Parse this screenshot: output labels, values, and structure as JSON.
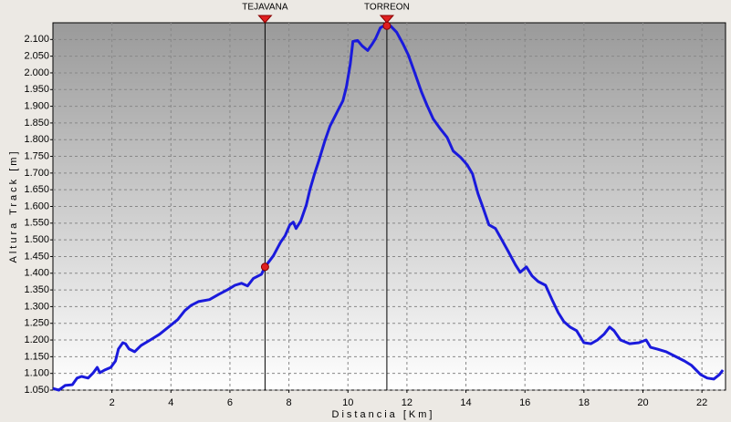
{
  "chart_data": {
    "type": "line",
    "x_label": "Distancia [Km]",
    "y_label": "Altura Track [m]",
    "color": "#1a1adc",
    "grid": true,
    "xlim": [
      0,
      22.8
    ],
    "ylim": [
      1050,
      2150
    ],
    "xticks": [
      2,
      4,
      6,
      8,
      10,
      12,
      14,
      16,
      18,
      20,
      22
    ],
    "yticks": [
      {
        "value": 1050,
        "label": "1.050"
      },
      {
        "value": 1100,
        "label": "1.100"
      },
      {
        "value": 1150,
        "label": "1.150"
      },
      {
        "value": 1200,
        "label": "1.200"
      },
      {
        "value": 1250,
        "label": "1.250"
      },
      {
        "value": 1300,
        "label": "1.300"
      },
      {
        "value": 1350,
        "label": "1.350"
      },
      {
        "value": 1400,
        "label": "1.400"
      },
      {
        "value": 1450,
        "label": "1.450"
      },
      {
        "value": 1500,
        "label": "1.500"
      },
      {
        "value": 1550,
        "label": "1.550"
      },
      {
        "value": 1600,
        "label": "1.600"
      },
      {
        "value": 1650,
        "label": "1.650"
      },
      {
        "value": 1700,
        "label": "1.700"
      },
      {
        "value": 1750,
        "label": "1.750"
      },
      {
        "value": 1800,
        "label": "1.800"
      },
      {
        "value": 1850,
        "label": "1.850"
      },
      {
        "value": 1900,
        "label": "1.900"
      },
      {
        "value": 1950,
        "label": "1.950"
      },
      {
        "value": 2000,
        "label": "2.000"
      },
      {
        "value": 2050,
        "label": "2.050"
      },
      {
        "value": 2100,
        "label": "2.100"
      }
    ],
    "x": [
      0.0,
      0.2,
      0.41,
      0.66,
      0.82,
      0.97,
      1.19,
      1.37,
      1.5,
      1.59,
      1.75,
      1.96,
      2.12,
      2.22,
      2.37,
      2.46,
      2.58,
      2.77,
      2.99,
      3.3,
      3.61,
      3.92,
      4.23,
      4.47,
      4.69,
      4.93,
      5.31,
      5.62,
      5.93,
      6.17,
      6.39,
      6.6,
      6.79,
      7.07,
      7.19,
      7.47,
      7.72,
      7.87,
      8.03,
      8.15,
      8.24,
      8.4,
      8.59,
      8.71,
      8.87,
      9.02,
      9.21,
      9.39,
      9.64,
      9.83,
      9.95,
      10.08,
      10.17,
      10.33,
      10.48,
      10.67,
      10.82,
      10.94,
      11.1,
      11.22,
      11.44,
      11.65,
      11.87,
      12.05,
      12.27,
      12.49,
      12.68,
      12.89,
      13.11,
      13.36,
      13.57,
      13.82,
      14.04,
      14.22,
      14.41,
      14.59,
      14.78,
      15.0,
      15.21,
      15.43,
      15.68,
      15.84,
      16.05,
      16.24,
      16.45,
      16.7,
      16.92,
      17.13,
      17.32,
      17.53,
      17.75,
      18.0,
      18.24,
      18.46,
      18.68,
      18.87,
      19.02,
      19.24,
      19.55,
      19.86,
      20.11,
      20.26,
      20.48,
      20.79,
      21.1,
      21.41,
      21.65,
      21.96,
      22.18,
      22.4,
      22.59,
      22.71
    ],
    "values": [
      1055,
      1050,
      1064,
      1066,
      1086,
      1091,
      1086,
      1102,
      1118,
      1102,
      1110,
      1118,
      1137,
      1173,
      1192,
      1189,
      1173,
      1165,
      1184,
      1200,
      1217,
      1239,
      1261,
      1288,
      1304,
      1315,
      1321,
      1337,
      1351,
      1364,
      1370,
      1362,
      1384,
      1397,
      1419,
      1452,
      1493,
      1512,
      1545,
      1553,
      1534,
      1556,
      1605,
      1649,
      1698,
      1739,
      1794,
      1840,
      1884,
      1917,
      1958,
      2026,
      2094,
      2097,
      2081,
      2067,
      2086,
      2103,
      2135,
      2141,
      2141,
      2122,
      2086,
      2053,
      1999,
      1944,
      1903,
      1862,
      1835,
      1807,
      1766,
      1747,
      1725,
      1698,
      1638,
      1594,
      1545,
      1534,
      1501,
      1466,
      1425,
      1403,
      1419,
      1392,
      1375,
      1364,
      1321,
      1282,
      1255,
      1239,
      1228,
      1192,
      1189,
      1200,
      1217,
      1239,
      1228,
      1200,
      1189,
      1192,
      1200,
      1178,
      1173,
      1165,
      1151,
      1137,
      1124,
      1096,
      1086,
      1083,
      1096,
      1110
    ],
    "markers": [
      {
        "label": "TEJAVANA",
        "x": 7.19,
        "value": 1419
      },
      {
        "label": "TORREON",
        "x": 11.32,
        "value": 2141
      }
    ],
    "marker_color": "#e02020"
  }
}
